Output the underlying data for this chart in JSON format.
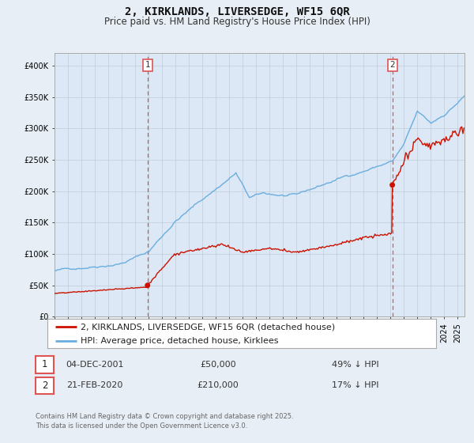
{
  "title": "2, KIRKLANDS, LIVERSEDGE, WF15 6QR",
  "subtitle": "Price paid vs. HM Land Registry's House Price Index (HPI)",
  "background_color": "#e8eef5",
  "plot_bg_color": "#dce8f5",
  "hpi_color": "#6aaee0",
  "price_color": "#cc1100",
  "vline_color": "#dd5555",
  "grid_color": "#c0ccd8",
  "ylim": [
    0,
    420000
  ],
  "yticks": [
    0,
    50000,
    100000,
    150000,
    200000,
    250000,
    300000,
    350000,
    400000
  ],
  "ytick_labels": [
    "£0",
    "£50K",
    "£100K",
    "£150K",
    "£200K",
    "£250K",
    "£300K",
    "£350K",
    "£400K"
  ],
  "xmin": 1995.0,
  "xmax": 2025.5,
  "legend_label_price": "2, KIRKLANDS, LIVERSEDGE, WF15 6QR (detached house)",
  "legend_label_hpi": "HPI: Average price, detached house, Kirklees",
  "sale1_date": "04-DEC-2001",
  "sale1_price": 50000,
  "sale1_hpi_pct": "49% ↓ HPI",
  "sale1_x": 2001.92,
  "sale2_date": "21-FEB-2020",
  "sale2_price": 210000,
  "sale2_hpi_pct": "17% ↓ HPI",
  "sale2_x": 2020.13,
  "footer": "Contains HM Land Registry data © Crown copyright and database right 2025.\nThis data is licensed under the Open Government Licence v3.0.",
  "title_fontsize": 10,
  "subtitle_fontsize": 8.5,
  "tick_fontsize": 7,
  "legend_fontsize": 8,
  "footer_fontsize": 6
}
